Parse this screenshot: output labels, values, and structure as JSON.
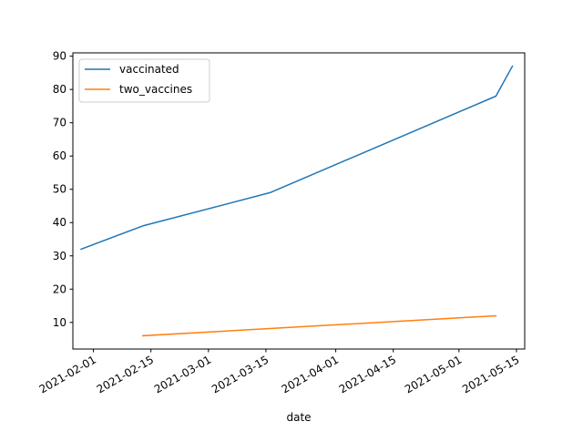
{
  "chart_data": {
    "type": "line",
    "title": "",
    "xlabel": "date",
    "ylabel": "",
    "x_type": "date",
    "xlim": [
      "2021-01-27",
      "2021-05-17"
    ],
    "ylim": [
      2,
      91
    ],
    "x_ticks": [
      "2021-02-01",
      "2021-02-15",
      "2021-03-01",
      "2021-03-15",
      "2021-04-01",
      "2021-04-15",
      "2021-05-01",
      "2021-05-15"
    ],
    "y_ticks": [
      10,
      20,
      30,
      40,
      50,
      60,
      70,
      80,
      90
    ],
    "grid": false,
    "legend_position": "upper-left",
    "series": [
      {
        "name": "vaccinated",
        "color": "#1f77b4",
        "points": [
          {
            "x": "2021-01-29",
            "y": 32
          },
          {
            "x": "2021-02-13",
            "y": 39
          },
          {
            "x": "2021-03-16",
            "y": 49
          },
          {
            "x": "2021-05-10",
            "y": 78
          },
          {
            "x": "2021-05-14",
            "y": 87
          }
        ]
      },
      {
        "name": "two_vaccines",
        "color": "#ff7f0e",
        "points": [
          {
            "x": "2021-02-13",
            "y": 6
          },
          {
            "x": "2021-05-10",
            "y": 12
          }
        ]
      }
    ]
  }
}
